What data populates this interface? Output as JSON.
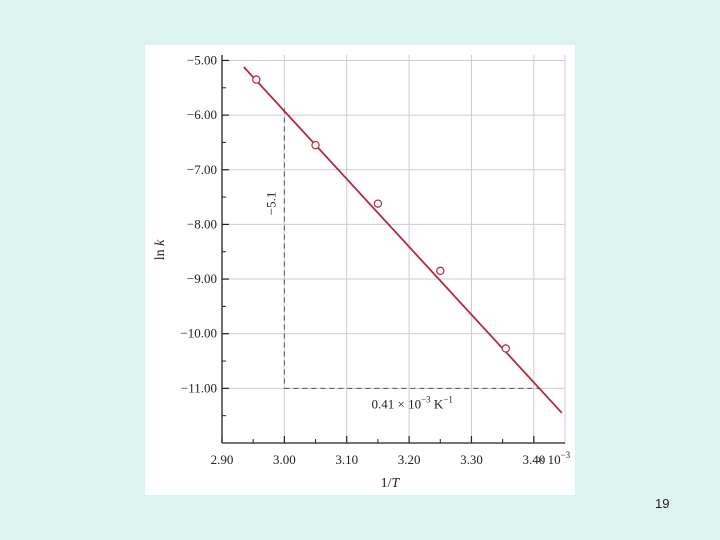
{
  "chart_data": {
    "type": "scatter",
    "title": "",
    "xlabel_parts": [
      "1/",
      "T"
    ],
    "ylabel_parts": [
      "ln ",
      "k"
    ],
    "x_tick_labels": [
      "2.90",
      "3.00",
      "3.10",
      "3.20",
      "3.30",
      "3.40"
    ],
    "x_tick_values": [
      2.9,
      3.0,
      3.1,
      3.2,
      3.3,
      3.4
    ],
    "x_multiplier_parts": [
      "× 10",
      "−3"
    ],
    "y_tick_labels": [
      "−5.00",
      "−6.00",
      "−7.00",
      "−8.00",
      "−9.00",
      "−10.00",
      "−11.00"
    ],
    "y_tick_values": [
      -5,
      -6,
      -7,
      -8,
      -9,
      -10,
      -11
    ],
    "xlim": [
      2.9,
      3.45
    ],
    "ylim": [
      -12.0,
      -4.9
    ],
    "grid": true,
    "points": [
      {
        "x": 2.955,
        "y": -5.35
      },
      {
        "x": 3.05,
        "y": -6.55
      },
      {
        "x": 3.15,
        "y": -7.62
      },
      {
        "x": 3.25,
        "y": -8.85
      },
      {
        "x": 3.355,
        "y": -10.27
      }
    ],
    "fit_line": {
      "x": [
        2.935,
        3.445
      ],
      "y": [
        -5.12,
        -11.45
      ]
    },
    "slope_triangle": {
      "x0": 3.0,
      "x1": 3.41,
      "y_top": -5.88,
      "y_bottom": -11.0
    },
    "annotations": {
      "rise_label": "−5.1",
      "run_parts": [
        "0.41 × 10",
        "−3",
        " K",
        "−1"
      ]
    },
    "colors": {
      "line": "#b5283e",
      "marker": "#b5283e",
      "grid": "#cccccc",
      "axis": "#222222"
    }
  },
  "page": {
    "number": "19"
  }
}
